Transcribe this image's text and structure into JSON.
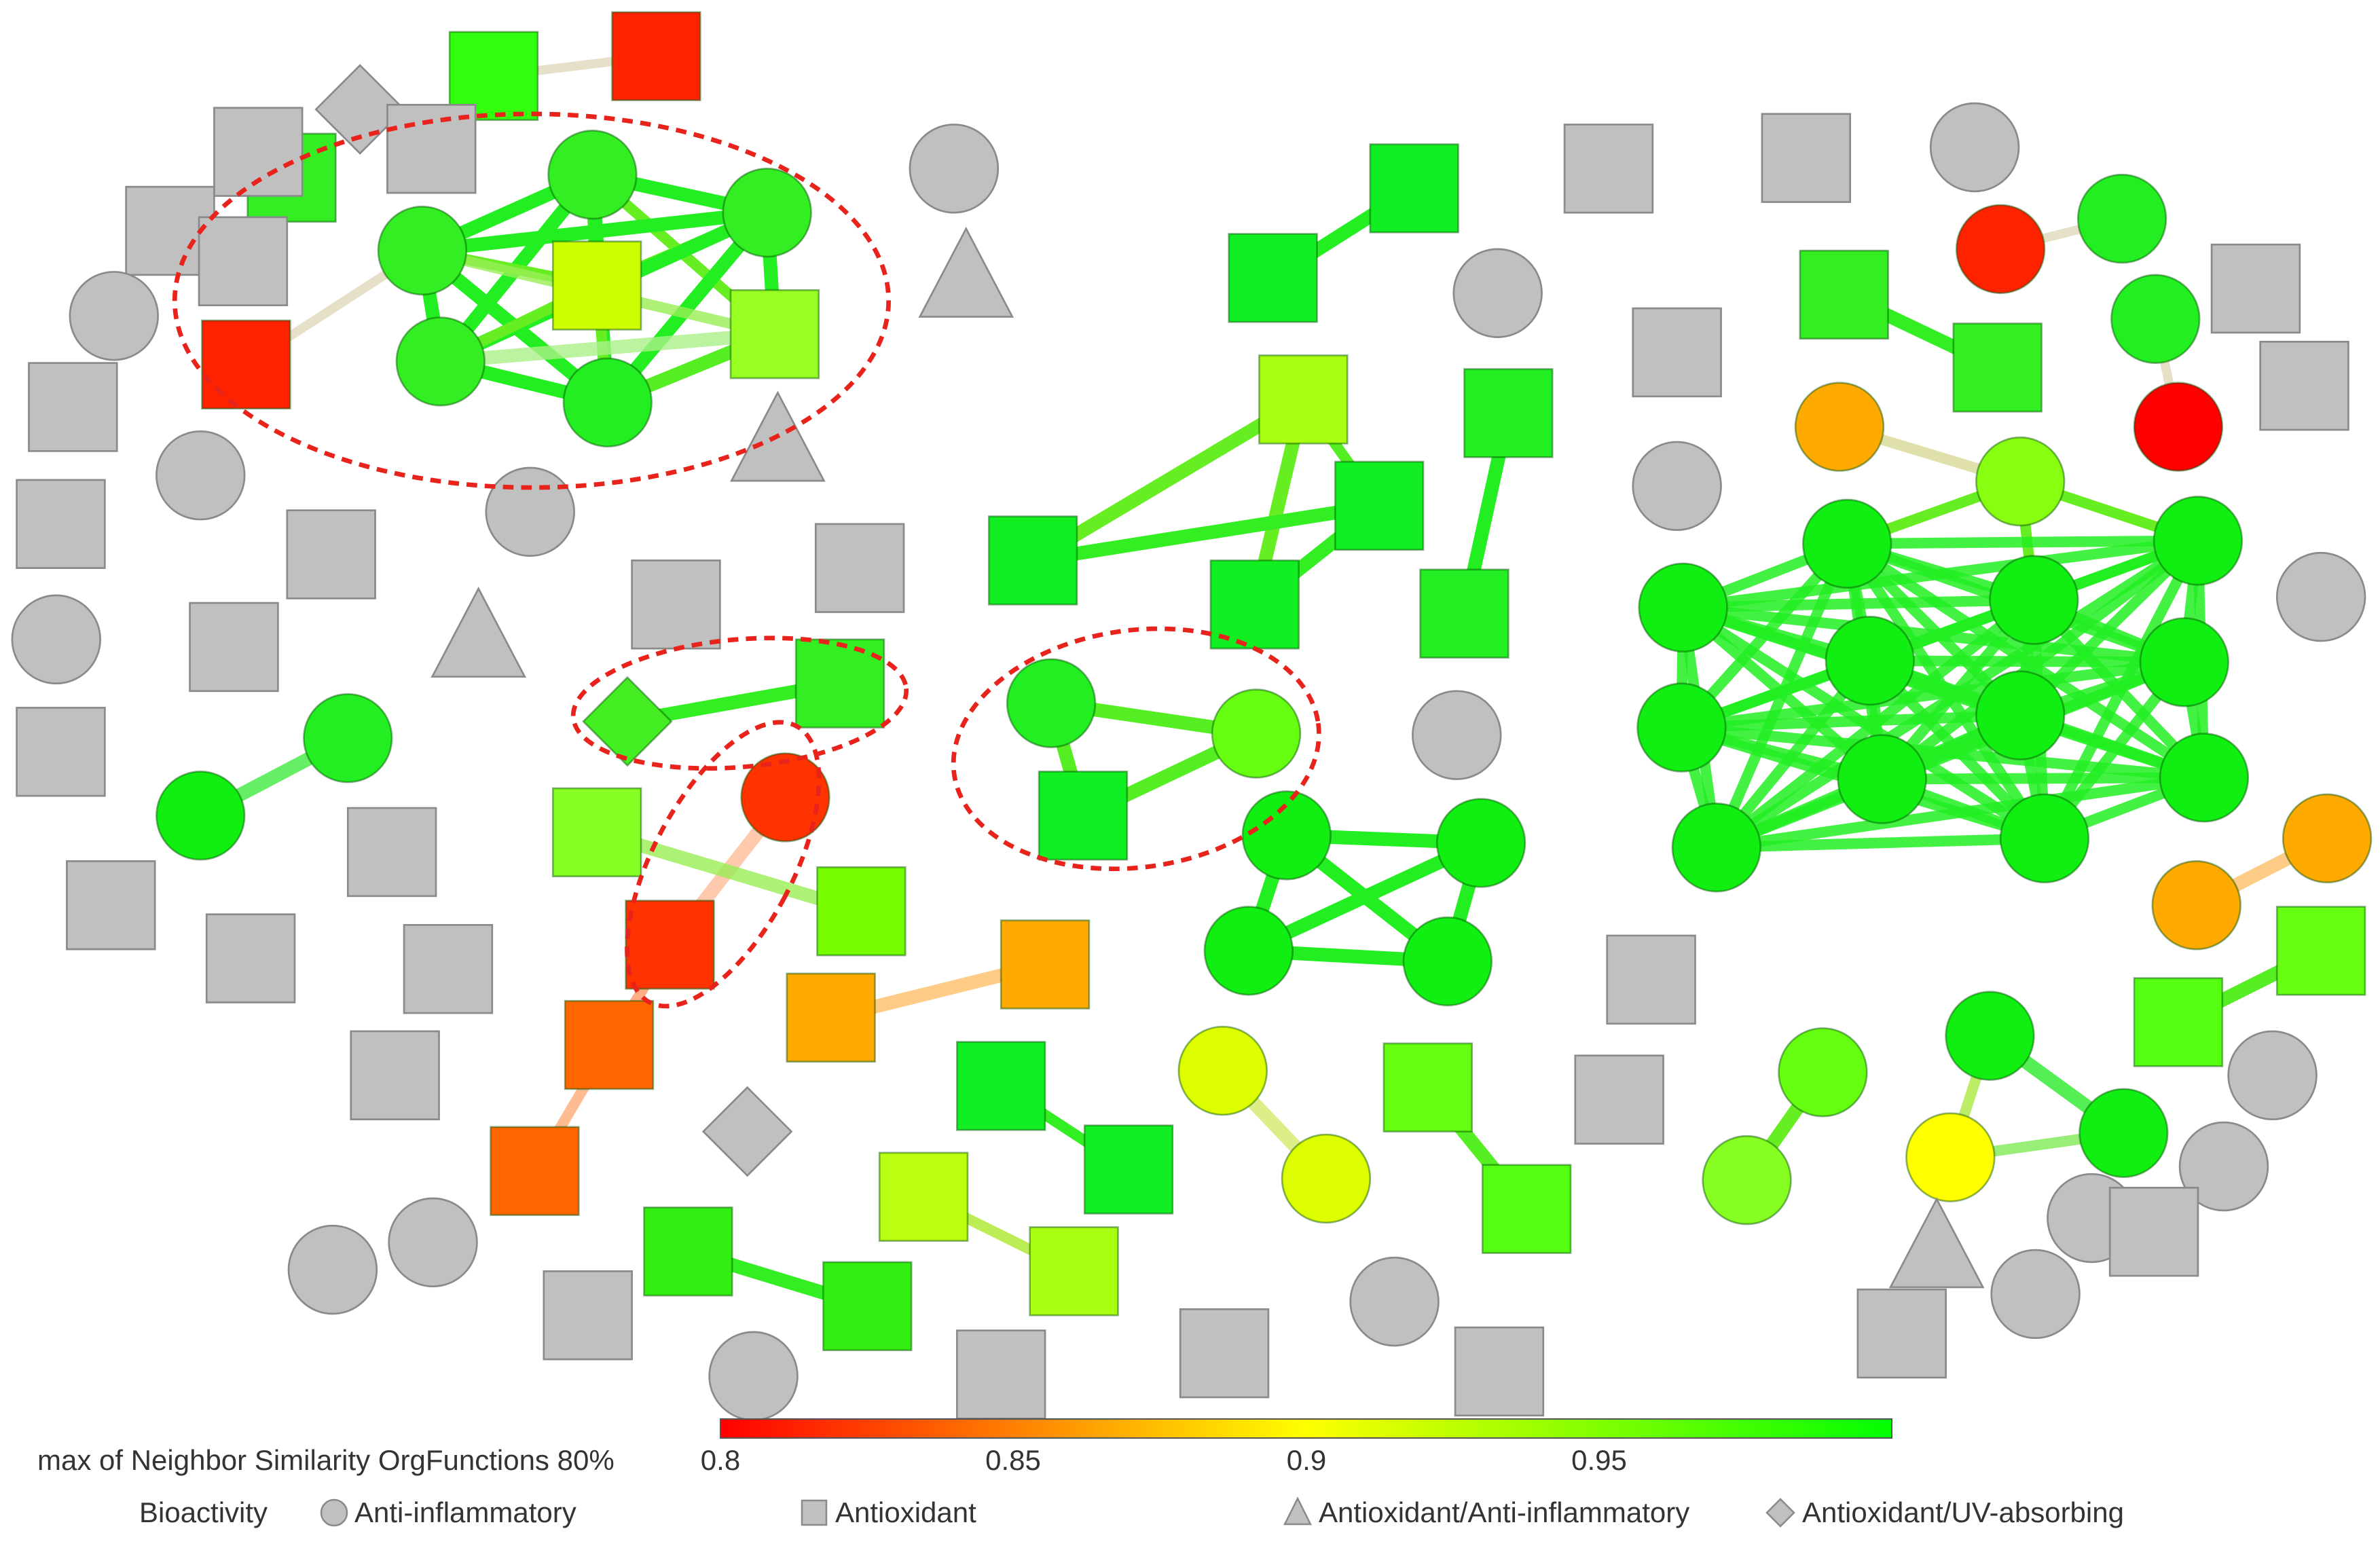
{
  "legend": {
    "color_title": "max of Neighbor Similarity OrgFunctions 80%",
    "ticks": [
      {
        "value": 0.8,
        "label": "0.8"
      },
      {
        "value": 0.85,
        "label": "0.85"
      },
      {
        "value": 0.9,
        "label": "0.9"
      },
      {
        "value": 0.95,
        "label": "0.95"
      }
    ],
    "range": [
      0.8,
      1.0
    ],
    "shape_title": "Bioactivity",
    "shapes": [
      {
        "shape": "circle",
        "label": "Anti-inflammatory"
      },
      {
        "shape": "square",
        "label": "Antioxidant"
      },
      {
        "shape": "triangle",
        "label": "Antioxidant/Anti-inflammatory"
      },
      {
        "shape": "diamond",
        "label": "Antioxidant/UV-absorbing"
      }
    ]
  },
  "colors": {
    "gray_node": "#c0c0c0",
    "gray_stroke": "#8a8a8a",
    "dashed_outline": "#e8231b",
    "scale_low": "#ff0000",
    "scale_mid": "#ffff00",
    "scale_high": "#00ff00"
  }
}
